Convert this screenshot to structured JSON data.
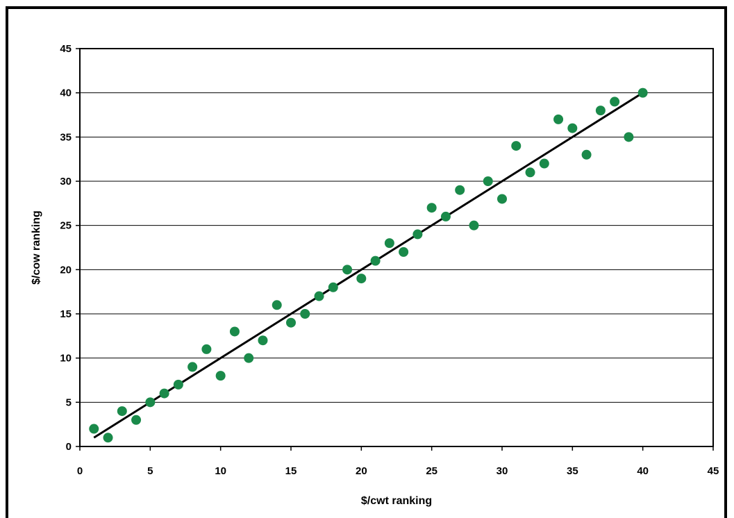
{
  "chart_data": {
    "type": "scatter",
    "xlabel": "$/cwt ranking",
    "ylabel": "$/cow ranking",
    "xlim": [
      0,
      45
    ],
    "ylim": [
      0,
      45
    ],
    "xticks": [
      0,
      5,
      10,
      15,
      20,
      25,
      30,
      35,
      40,
      45
    ],
    "yticks": [
      0,
      5,
      10,
      15,
      20,
      25,
      30,
      35,
      40,
      45
    ],
    "grid": "horizontal",
    "legend": "none",
    "marker_color": "#1a8a4a",
    "trendline_color": "#000000",
    "series": [
      {
        "x": [
          1,
          2,
          3,
          4,
          5,
          6,
          7,
          8,
          9,
          10,
          11,
          12,
          13,
          14,
          15,
          16,
          17,
          18,
          19,
          20,
          21,
          22,
          23,
          24,
          25,
          26,
          27,
          28,
          29,
          30,
          31,
          32,
          33,
          34,
          35,
          36,
          37,
          38,
          39,
          40
        ],
        "y": [
          2,
          1,
          4,
          3,
          5,
          6,
          7,
          9,
          11,
          8,
          13,
          10,
          12,
          16,
          14,
          15,
          17,
          18,
          20,
          19,
          21,
          23,
          22,
          24,
          27,
          26,
          29,
          25,
          30,
          28,
          34,
          31,
          32,
          37,
          36,
          33,
          38,
          39,
          35,
          40
        ]
      }
    ],
    "trendline": {
      "x": [
        1,
        40
      ],
      "y": [
        1,
        40
      ]
    }
  }
}
